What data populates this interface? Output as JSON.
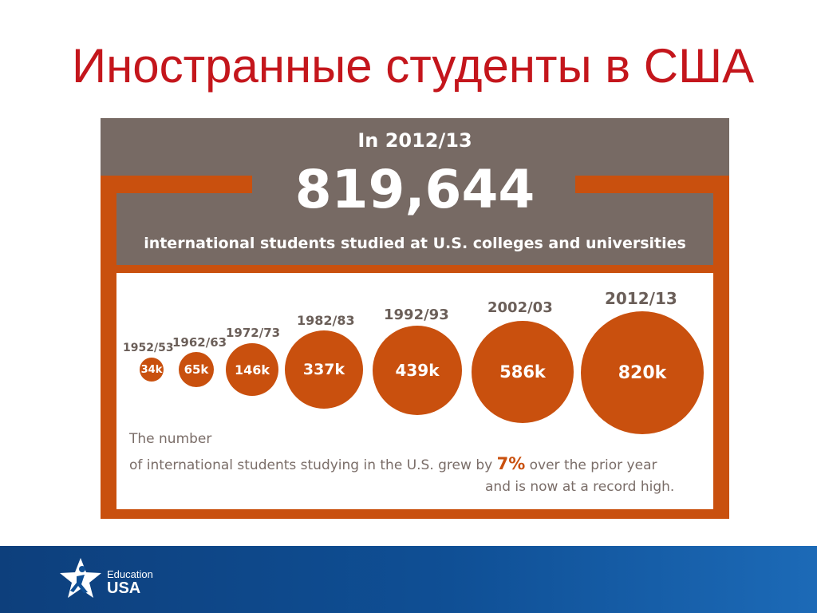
{
  "slide": {
    "title": "Иностранные студенты в США"
  },
  "infographic": {
    "year_label": "In 2012/13",
    "total": "819,644",
    "description": "international students studied at U.S. colleges and universities",
    "bubbles": [
      {
        "year": "1952/53",
        "value": "34k"
      },
      {
        "year": "1962/63",
        "value": "65k"
      },
      {
        "year": "1972/73",
        "value": "146k"
      },
      {
        "year": "1982/83",
        "value": "337k"
      },
      {
        "year": "1992/93",
        "value": "439k"
      },
      {
        "year": "2002/03",
        "value": "586k"
      },
      {
        "year": "2012/13",
        "value": "820k"
      }
    ],
    "caption": {
      "line1": "The number",
      "line2_pre": "of international students studying in the U.S. grew by ",
      "line2_pct": "7%",
      "line2_post": " over the prior year",
      "line3": "and is now at a record high."
    },
    "colors": {
      "accent": "#c9500e",
      "header_gray": "#776a64",
      "title_red": "#c4161c"
    }
  },
  "footer": {
    "logo_line1": "Education",
    "logo_line2": "USA",
    "logo_icon": "star-figure-icon"
  }
}
